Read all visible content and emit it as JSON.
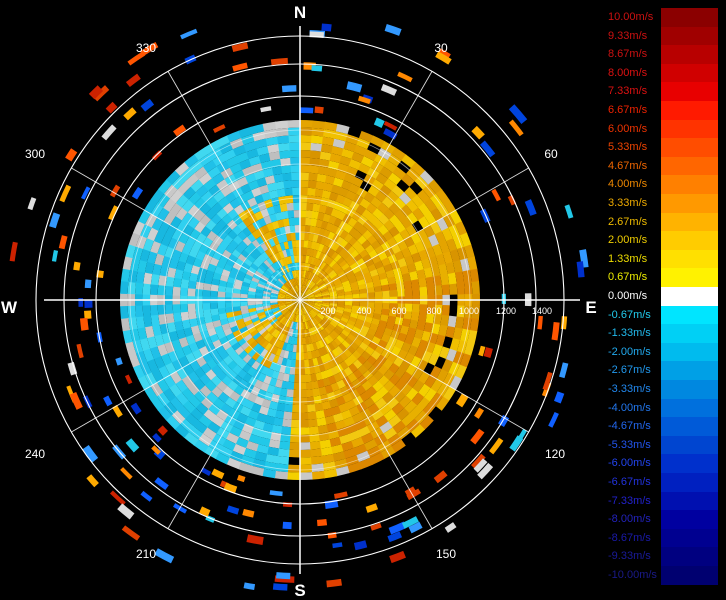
{
  "compass": {
    "north": "N",
    "south": "S",
    "east": "E",
    "west": "W"
  },
  "bearings": [
    "30",
    "60",
    "120",
    "150",
    "210",
    "240",
    "300",
    "330"
  ],
  "range_labels": [
    "200",
    "400",
    "600",
    "800",
    "1000",
    "1200",
    "1400"
  ],
  "colorbar": {
    "entries": [
      {
        "label": "10.00m/s",
        "color": "#8b0000",
        "text_color": "#cc1111"
      },
      {
        "label": "9.33m/s",
        "color": "#a00000",
        "text_color": "#cc1111"
      },
      {
        "label": "8.67m/s",
        "color": "#b80000",
        "text_color": "#cc1111"
      },
      {
        "label": "8.00m/s",
        "color": "#d00000",
        "text_color": "#dd1111"
      },
      {
        "label": "7.33m/s",
        "color": "#e80000",
        "text_color": "#dd1111"
      },
      {
        "label": "6.67m/s",
        "color": "#ff1a00",
        "text_color": "#ee2200"
      },
      {
        "label": "6.00m/s",
        "color": "#ff3300",
        "text_color": "#ee3300"
      },
      {
        "label": "5.33m/s",
        "color": "#ff4d00",
        "text_color": "#ee4400"
      },
      {
        "label": "4.67m/s",
        "color": "#ff6600",
        "text_color": "#ee6600"
      },
      {
        "label": "4.00m/s",
        "color": "#ff8000",
        "text_color": "#ee8800"
      },
      {
        "label": "3.33m/s",
        "color": "#ff9900",
        "text_color": "#eeaa00"
      },
      {
        "label": "2.67m/s",
        "color": "#ffb300",
        "text_color": "#eebb00"
      },
      {
        "label": "2.00m/s",
        "color": "#ffcc00",
        "text_color": "#eecc00"
      },
      {
        "label": "1.33m/s",
        "color": "#ffe000",
        "text_color": "#eedd00"
      },
      {
        "label": "0.67m/s",
        "color": "#fff200",
        "text_color": "#eeee00"
      },
      {
        "label": "0.00m/s",
        "color": "#ffffff",
        "text_color": "#ffffff"
      },
      {
        "label": "-0.67m/s",
        "color": "#00e5ff",
        "text_color": "#22ccee"
      },
      {
        "label": "-1.33m/s",
        "color": "#00d0f5",
        "text_color": "#22bbee"
      },
      {
        "label": "-2.00m/s",
        "color": "#00bbee",
        "text_color": "#22aaee"
      },
      {
        "label": "-2.67m/s",
        "color": "#00a0e6",
        "text_color": "#2299ee"
      },
      {
        "label": "-3.33m/s",
        "color": "#0088e0",
        "text_color": "#2288ee"
      },
      {
        "label": "-4.00m/s",
        "color": "#0070dd",
        "text_color": "#2277ee"
      },
      {
        "label": "-4.67m/s",
        "color": "#005ad8",
        "text_color": "#2266ee"
      },
      {
        "label": "-5.33m/s",
        "color": "#0045d0",
        "text_color": "#2255ee"
      },
      {
        "label": "-6.00m/s",
        "color": "#0030cc",
        "text_color": "#2244ee"
      },
      {
        "label": "-6.67m/s",
        "color": "#0020c0",
        "text_color": "#2233dd"
      },
      {
        "label": "-7.33m/s",
        "color": "#0010b0",
        "text_color": "#2222cc"
      },
      {
        "label": "-8.00m/s",
        "color": "#0000a0",
        "text_color": "#2222bb"
      },
      {
        "label": "-8.67m/s",
        "color": "#000090",
        "text_color": "#1a1aaa"
      },
      {
        "label": "-9.33m/s",
        "color": "#000080",
        "text_color": "#1a1a99"
      },
      {
        "label": "-10.00m/s",
        "color": "#000070",
        "text_color": "#1a1a88"
      }
    ]
  },
  "colors": {
    "background": "#000000",
    "grid_ring": "#ffffff",
    "axis_north_south": "#ffffff",
    "axis_east_west": "#ffffff",
    "positive_fill": "#f0b800",
    "negative_fill": "#22c0e0",
    "missing_fill": "#c8c8c8",
    "ring_label": "#ffffff"
  }
}
